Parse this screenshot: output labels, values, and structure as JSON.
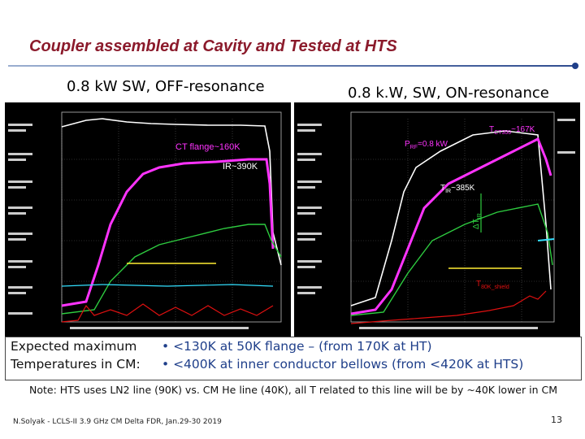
{
  "slide": {
    "title": "Coupler assembled at Cavity and Tested at HTS",
    "footer": "N.Solyak - LCLS-II 3.9 GHz CM Delta FDR, Jan.29-30 2019",
    "page_number": "13"
  },
  "left_plot": {
    "caption": "0.8 kW SW, OFF-resonance",
    "annotations": {
      "ct_flange": "CT flange~160K",
      "ir": "IR~390K"
    }
  },
  "right_plot": {
    "caption": "0.8 k.W, SW, ON-resonance",
    "annotations": {
      "t_ct300": "T",
      "t_ct300_sub": "CT300",
      "t_ct300_val": "~167K",
      "p_rf": "P",
      "p_rf_sub": "RF",
      "p_rf_val": "=0.8 kW",
      "t_ir": "T",
      "t_ir_sub": "IR",
      "t_ir_val": "~385K",
      "delta_t": "ΔT",
      "delta_t_sub": "IR",
      "t_80k": "T",
      "t_80k_sub": "80K_shield"
    }
  },
  "expected": {
    "heading_line1": "Expected maximum",
    "heading_line2": "Temperatures in CM:",
    "bullet1": "• <130K at 50K flange – (from 170K at HT)",
    "bullet2": "• <400K at inner conductor bellows  (from <420K at HTS)"
  },
  "note": "Note: HTS uses LN2 line (90K) vs. CM He line (40K),  all T related to this line will be by ~40K lower in CM",
  "colors": {
    "title": "#8b1a2b",
    "accent_blue": "#1f3f8a",
    "trace_magenta": "#ff33ff",
    "trace_green": "#2ecc40",
    "trace_red": "#e01010",
    "trace_yellow": "#ffee33",
    "trace_cyan": "#33e0ff"
  }
}
